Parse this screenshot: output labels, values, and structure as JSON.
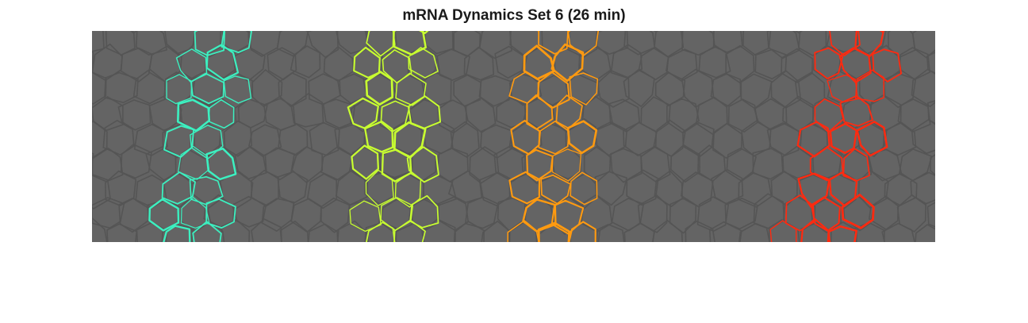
{
  "figure": {
    "title": "mRNA Dynamics Set 6 (26 min)"
  },
  "image": {
    "description_icon": "cell-membrane-microscopy-image",
    "background_color": "#646464",
    "membrane_color": "#555555",
    "stripes": [
      {
        "id": "stripe-1",
        "color": "#3cf0c0"
      },
      {
        "id": "stripe-2",
        "color": "#c8ff30"
      },
      {
        "id": "stripe-3",
        "color": "#ff9a10"
      },
      {
        "id": "stripe-4",
        "color": "#ff2a10"
      }
    ]
  }
}
